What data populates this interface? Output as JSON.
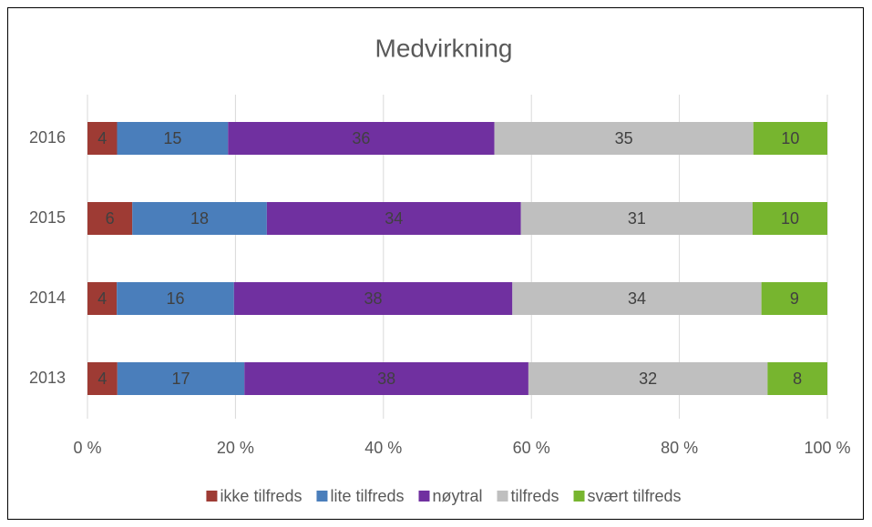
{
  "chart_data": {
    "type": "bar",
    "orientation": "horizontal",
    "stacking": "percent",
    "title": "Medvirkning",
    "categories": [
      "2016",
      "2015",
      "2014",
      "2013"
    ],
    "series": [
      {
        "name": "ikke tilfreds",
        "color": "#9e3b34",
        "values": [
          4,
          6,
          4,
          4
        ]
      },
      {
        "name": "lite tilfreds",
        "color": "#4a7ebb",
        "values": [
          15,
          18,
          16,
          17
        ]
      },
      {
        "name": "nøytral",
        "color": "#7030a0",
        "values": [
          36,
          34,
          38,
          38
        ]
      },
      {
        "name": "tilfreds",
        "color": "#bfbfbf",
        "values": [
          35,
          31,
          34,
          32
        ]
      },
      {
        "name": "svært tilfreds",
        "color": "#77b52f",
        "values": [
          10,
          10,
          9,
          8
        ]
      }
    ],
    "xlim": [
      0,
      100
    ],
    "xticks": [
      {
        "value": 0,
        "label": "0 %"
      },
      {
        "value": 20,
        "label": "20 %"
      },
      {
        "value": 40,
        "label": "40 %"
      },
      {
        "value": 60,
        "label": "60 %"
      },
      {
        "value": 80,
        "label": "80 %"
      },
      {
        "value": 100,
        "label": "100 %"
      }
    ],
    "grid": true,
    "legend": "bottom"
  }
}
